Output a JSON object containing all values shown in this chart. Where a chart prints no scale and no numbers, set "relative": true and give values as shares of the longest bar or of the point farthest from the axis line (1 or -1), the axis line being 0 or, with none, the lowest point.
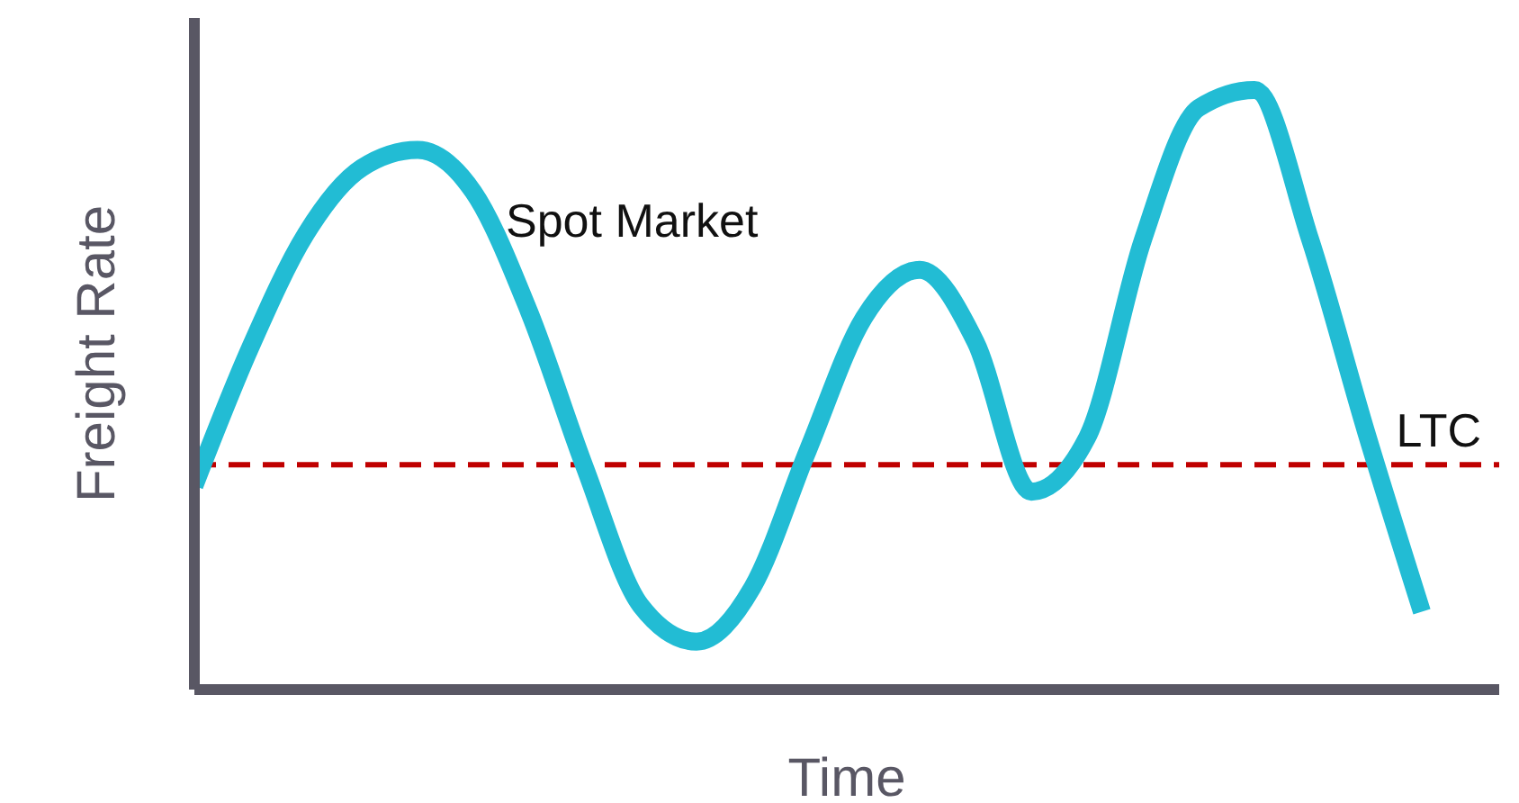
{
  "chart_data": {
    "type": "line",
    "relative": true,
    "xlabel": "Time",
    "ylabel": "Freight Rate",
    "categories": [
      null,
      null,
      null,
      null,
      null,
      null,
      null,
      null,
      null,
      null,
      null,
      null,
      null,
      null,
      null,
      null,
      null,
      null,
      null,
      null,
      null,
      null,
      null
    ],
    "series": [
      {
        "name": "Spot Market",
        "color": "#22bcd4",
        "values": [
          0.34,
          0.57,
          0.76,
          0.87,
          0.9,
          0.83,
          0.63,
          0.37,
          0.14,
          0.08,
          0.17,
          0.4,
          0.62,
          0.7,
          0.58,
          0.33,
          0.42,
          0.75,
          0.97,
          1.0,
          0.75,
          0.43,
          0.13
        ]
      }
    ],
    "ref_lines": [
      {
        "axis": "y",
        "value": 0.375,
        "label": "LTC",
        "color": "#c00000",
        "line_style": "dashed"
      }
    ],
    "grid": false,
    "legend": false,
    "marker": "none",
    "line_style": "solid"
  }
}
